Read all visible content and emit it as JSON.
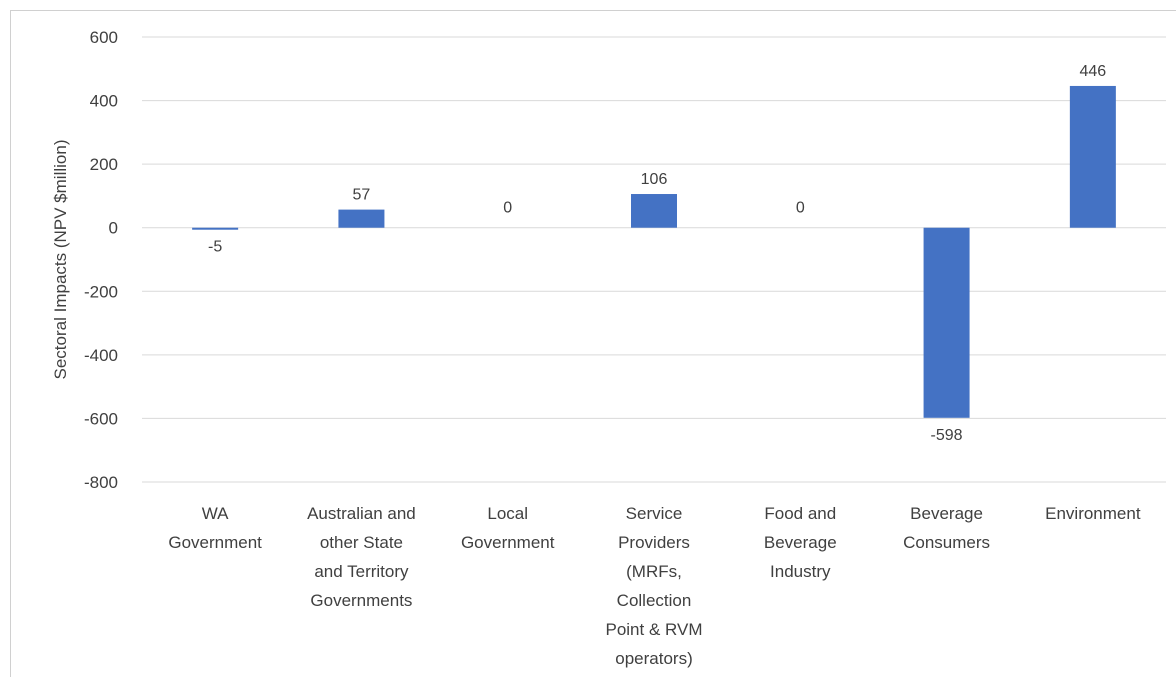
{
  "chart_data": {
    "type": "bar",
    "title": "",
    "xlabel": "",
    "ylabel": "Sectoral Impacts (NPV $million)",
    "ylim": [
      -800,
      600
    ],
    "yticks": [
      600,
      400,
      200,
      0,
      -200,
      -400,
      -600,
      -800
    ],
    "grid": true,
    "categories": [
      [
        "WA",
        "Government"
      ],
      [
        "Australian and",
        "other State",
        "and Territory",
        "Governments"
      ],
      [
        "Local",
        "Government"
      ],
      [
        "Service",
        "Providers",
        "(MRFs,",
        "Collection",
        "Point & RVM",
        "operators)"
      ],
      [
        "Food and",
        "Beverage",
        "Industry"
      ],
      [
        "Beverage",
        "Consumers"
      ],
      [
        "Environment"
      ]
    ],
    "values": [
      -5,
      57,
      0,
      106,
      0,
      -598,
      446
    ],
    "data_labels": [
      "-5",
      "57",
      "0",
      "106",
      "0",
      "-598",
      "446"
    ],
    "bar_color": "#4472C4",
    "grid_color": "#d9d9d9",
    "text_color": "#404040"
  }
}
